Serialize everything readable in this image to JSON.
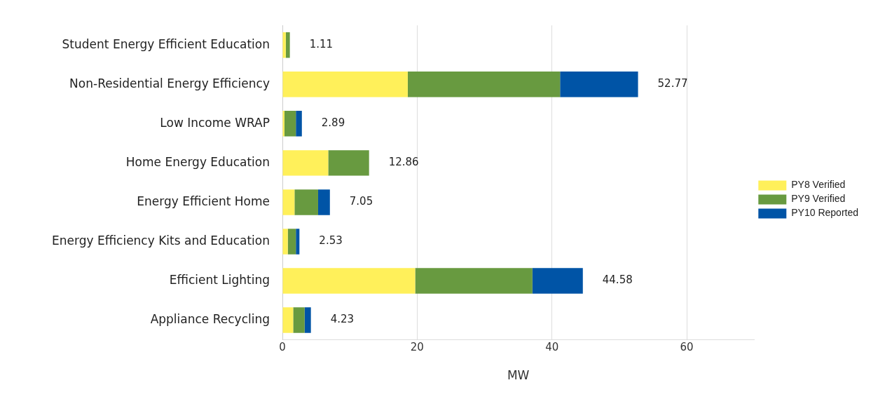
{
  "chart_data": {
    "type": "bar",
    "orientation": "horizontal",
    "stacked": true,
    "xlabel": "MW",
    "categories": [
      "Student Energy Efficient Education",
      "Non-Residential Energy Efficiency",
      "Low Income WRAP",
      "Home Energy Education",
      "Energy Efficient Home",
      "Energy Efficiency Kits and Education",
      "Efficient Lighting",
      "Appliance Recycling"
    ],
    "series": [
      {
        "name": "PY8 Verified",
        "color": "#fff05a",
        "values": [
          0.5,
          18.6,
          0.3,
          6.8,
          1.8,
          0.8,
          19.7,
          1.6
        ]
      },
      {
        "name": "PY9 Verified",
        "color": "#689a40",
        "values": [
          0.61,
          22.6,
          1.7,
          6.06,
          3.5,
          1.2,
          17.4,
          1.7
        ]
      },
      {
        "name": "PY10 Reported",
        "color": "#0054a6",
        "values": [
          0,
          11.57,
          0.89,
          0,
          1.75,
          0.53,
          7.48,
          0.93
        ]
      }
    ],
    "totals": [
      "1.11",
      "52.77",
      "2.89",
      "12.86",
      "7.05",
      "2.53",
      "44.58",
      "4.23"
    ],
    "xlim": [
      0,
      70
    ],
    "xticks": [
      0,
      20,
      40,
      60
    ],
    "grid": "x",
    "legend": "right"
  }
}
